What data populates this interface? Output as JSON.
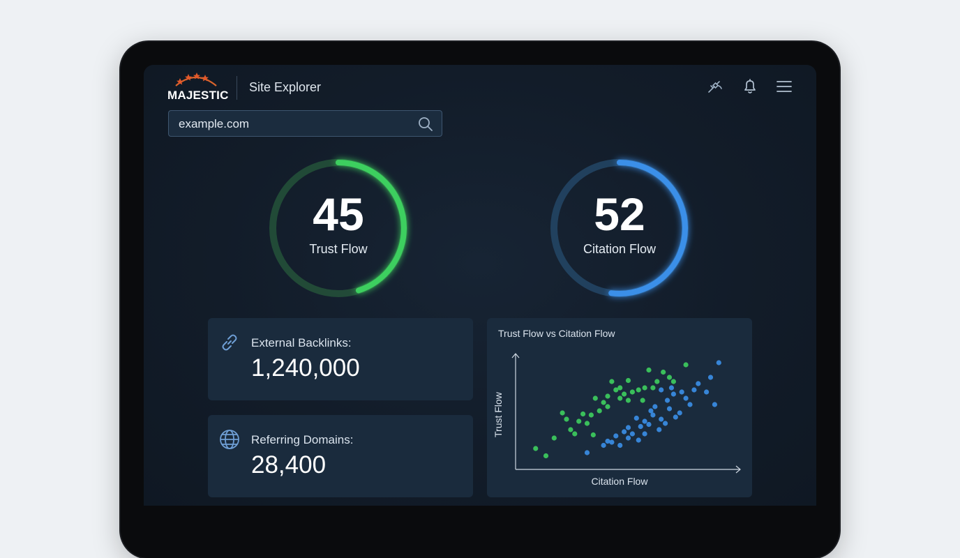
{
  "header": {
    "logo_text": "MAJESTIC",
    "app_title": "Site Explorer"
  },
  "search": {
    "value": "example.com"
  },
  "metrics": {
    "trust_flow": {
      "value": "45",
      "label": "Trust Flow",
      "color": "#3ecf5e",
      "fill": 0.45
    },
    "citation_flow": {
      "value": "52",
      "label": "Citation Flow",
      "color": "#3b8fe8",
      "fill": 0.52
    }
  },
  "cards": {
    "backlinks": {
      "label": "External Backlinks:",
      "value": "1,240,000",
      "icon": "link-icon"
    },
    "domains": {
      "label": "Referring Domains:",
      "value": "28,400",
      "icon": "globe-icon"
    }
  },
  "chart_data": {
    "type": "scatter",
    "title": "Trust Flow vs Citation Flow",
    "xlabel": "Citation Flow",
    "ylabel": "Trust Flow",
    "grid": false,
    "series": [
      {
        "color": "#3ecf5e",
        "points": [
          [
            5,
            12
          ],
          [
            10,
            5
          ],
          [
            14,
            22
          ],
          [
            18,
            46
          ],
          [
            22,
            30
          ],
          [
            20,
            40
          ],
          [
            24,
            26
          ],
          [
            26,
            38
          ],
          [
            28,
            45
          ],
          [
            30,
            36
          ],
          [
            32,
            44
          ],
          [
            33,
            25
          ],
          [
            34,
            60
          ],
          [
            36,
            48
          ],
          [
            38,
            56
          ],
          [
            40,
            62
          ],
          [
            40,
            52
          ],
          [
            42,
            76
          ],
          [
            44,
            68
          ],
          [
            46,
            60
          ],
          [
            48,
            64
          ],
          [
            50,
            77
          ],
          [
            50,
            58
          ],
          [
            52,
            66
          ],
          [
            55,
            68
          ],
          [
            57,
            58
          ],
          [
            60,
            87
          ],
          [
            62,
            70
          ],
          [
            64,
            76
          ],
          [
            67,
            85
          ],
          [
            72,
            76
          ],
          [
            78,
            92
          ],
          [
            70,
            80
          ],
          [
            58,
            70
          ],
          [
            46,
            70
          ]
        ]
      },
      {
        "color": "#3b8fe8",
        "points": [
          [
            30,
            8
          ],
          [
            38,
            15
          ],
          [
            40,
            19
          ],
          [
            42,
            18
          ],
          [
            44,
            24
          ],
          [
            46,
            15
          ],
          [
            48,
            28
          ],
          [
            50,
            32
          ],
          [
            52,
            26
          ],
          [
            54,
            41
          ],
          [
            55,
            20
          ],
          [
            56,
            33
          ],
          [
            58,
            38
          ],
          [
            60,
            35
          ],
          [
            61,
            48
          ],
          [
            62,
            44
          ],
          [
            63,
            52
          ],
          [
            65,
            30
          ],
          [
            66,
            40
          ],
          [
            68,
            36
          ],
          [
            69,
            58
          ],
          [
            70,
            50
          ],
          [
            72,
            64
          ],
          [
            73,
            42
          ],
          [
            75,
            46
          ],
          [
            76,
            66
          ],
          [
            78,
            60
          ],
          [
            80,
            54
          ],
          [
            82,
            68
          ],
          [
            84,
            74
          ],
          [
            88,
            66
          ],
          [
            90,
            80
          ],
          [
            92,
            54
          ],
          [
            94,
            94
          ],
          [
            71,
            70
          ],
          [
            66,
            68
          ],
          [
            58,
            26
          ],
          [
            50,
            22
          ]
        ]
      }
    ]
  },
  "colors": {
    "screen_bg": "#121c29",
    "card_bg": "#1a2b3d",
    "accent_green": "#3ecf5e",
    "accent_blue": "#3b8fe8"
  },
  "icons": {
    "satellite": "satellite-icon",
    "bell": "bell-icon",
    "menu": "menu-icon",
    "search": "search-icon"
  }
}
